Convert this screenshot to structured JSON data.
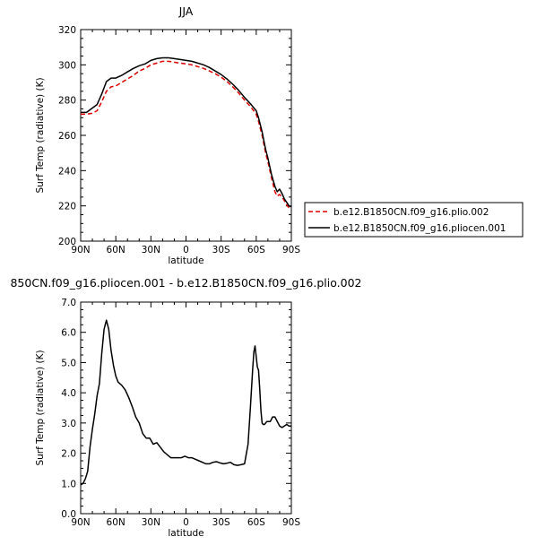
{
  "chart_data": [
    {
      "type": "line",
      "title": "JJA",
      "xlabel": "latitude",
      "ylabel": "Surf Temp (radiative) (K)",
      "xlim": [
        90,
        -90
      ],
      "ylim": [
        200,
        320
      ],
      "x_ticks": [
        90,
        60,
        30,
        0,
        -30,
        -60,
        -90
      ],
      "x_tick_labels": [
        "90N",
        "60N",
        "30N",
        "0",
        "30S",
        "60S",
        "90S"
      ],
      "y_ticks": [
        200,
        220,
        240,
        260,
        280,
        300,
        320
      ],
      "y_tick_labels": [
        "200",
        "220",
        "240",
        "260",
        "280",
        "300",
        "320"
      ],
      "legend": "right",
      "series": [
        {
          "name": "b.e12.B1850CN.f09_g16.plio.002",
          "color": "#dd0000",
          "dashed": true,
          "x": [
            90,
            85,
            80,
            76,
            72,
            68,
            64,
            60,
            55,
            50,
            45,
            40,
            35,
            30,
            25,
            20,
            15,
            10,
            5,
            0,
            -5,
            -10,
            -15,
            -20,
            -25,
            -30,
            -35,
            -40,
            -45,
            -50,
            -55,
            -60,
            -62,
            -65,
            -68,
            -70,
            -73,
            -76,
            -78,
            -80,
            -82,
            -84,
            -86,
            -88,
            -90
          ],
          "y": [
            272,
            272,
            272.5,
            274,
            279,
            285,
            287.5,
            288,
            290,
            292,
            294,
            296.5,
            298,
            300,
            301,
            302,
            302,
            301.5,
            301,
            300.5,
            300,
            299,
            298,
            296.5,
            295,
            293,
            290.5,
            287.5,
            284,
            280,
            276.5,
            272,
            268,
            260,
            250,
            245,
            236,
            228,
            225.5,
            226.5,
            225,
            223,
            220.5,
            219,
            218.5
          ]
        },
        {
          "name": "b.e12.B1850CN.f09_g16.pliocen.001",
          "color": "#000000",
          "dashed": false,
          "x": [
            90,
            85,
            80,
            76,
            72,
            68,
            64,
            60,
            55,
            50,
            45,
            40,
            35,
            30,
            25,
            20,
            15,
            10,
            5,
            0,
            -5,
            -10,
            -15,
            -20,
            -25,
            -30,
            -35,
            -40,
            -45,
            -50,
            -55,
            -60,
            -62,
            -65,
            -68,
            -70,
            -73,
            -76,
            -78,
            -80,
            -82,
            -84,
            -86,
            -88,
            -90
          ],
          "y": [
            273,
            273,
            275.5,
            277.5,
            283.5,
            290.5,
            292.5,
            292.5,
            294,
            296,
            298,
            299.5,
            300.5,
            302.5,
            303.5,
            304,
            304,
            303.5,
            303,
            302.5,
            302,
            301,
            300,
            298.5,
            296.5,
            294.5,
            292,
            289,
            285.5,
            281.5,
            278,
            274,
            270,
            262,
            252,
            247,
            238,
            231,
            228,
            229.5,
            227,
            224,
            222,
            220,
            219.5
          ]
        }
      ]
    },
    {
      "type": "line",
      "title": "850CN.f09_g16.pliocen.001 - b.e12.B1850CN.f09_g16.plio.002",
      "xlabel": "latitude",
      "ylabel": "Surf Temp (radiative) (K)",
      "xlim": [
        90,
        -90
      ],
      "ylim": [
        0.0,
        7.0
      ],
      "x_ticks": [
        90,
        60,
        30,
        0,
        -30,
        -60,
        -90
      ],
      "x_tick_labels": [
        "90N",
        "60N",
        "30N",
        "0",
        "30S",
        "60S",
        "90S"
      ],
      "y_ticks": [
        0,
        1,
        2,
        3,
        4,
        5,
        6,
        7
      ],
      "y_tick_labels": [
        "0.0",
        "1.0",
        "2.0",
        "3.0",
        "4.0",
        "5.0",
        "6.0",
        "7.0"
      ],
      "series": [
        {
          "color": "#000000",
          "x": [
            90,
            88,
            86,
            84,
            82,
            80,
            78,
            76,
            74,
            72,
            70,
            68,
            66,
            64,
            62,
            60,
            58,
            55,
            52,
            49,
            46,
            43,
            40,
            37,
            34,
            31,
            28,
            25,
            22,
            19,
            16,
            13,
            10,
            7,
            4,
            1,
            -2,
            -5,
            -8,
            -11,
            -14,
            -17,
            -20,
            -23,
            -26,
            -29,
            -32,
            -35,
            -38,
            -41,
            -44,
            -47,
            -50,
            -53,
            -55,
            -57,
            -58,
            -59,
            -60,
            -61,
            -62,
            -63,
            -64,
            -65,
            -66,
            -67,
            -68,
            -69,
            -70,
            -72,
            -74,
            -76,
            -78,
            -80,
            -82,
            -84,
            -86,
            -88,
            -90
          ],
          "y": [
            0.95,
            1.0,
            1.15,
            1.4,
            2.2,
            2.8,
            3.3,
            3.9,
            4.3,
            5.3,
            6.1,
            6.4,
            6.1,
            5.4,
            4.9,
            4.55,
            4.35,
            4.25,
            4.1,
            3.85,
            3.55,
            3.2,
            3.0,
            2.65,
            2.5,
            2.5,
            2.3,
            2.35,
            2.2,
            2.05,
            1.95,
            1.85,
            1.85,
            1.85,
            1.85,
            1.9,
            1.85,
            1.85,
            1.8,
            1.75,
            1.7,
            1.65,
            1.65,
            1.7,
            1.72,
            1.68,
            1.65,
            1.67,
            1.7,
            1.62,
            1.6,
            1.62,
            1.65,
            2.3,
            3.5,
            4.8,
            5.35,
            5.55,
            5.2,
            4.85,
            4.75,
            4.1,
            3.4,
            3.0,
            2.95,
            2.95,
            3.0,
            3.05,
            3.05,
            3.05,
            3.2,
            3.2,
            3.05,
            2.9,
            2.85,
            2.9,
            2.95,
            2.9,
            2.9
          ]
        }
      ]
    }
  ]
}
